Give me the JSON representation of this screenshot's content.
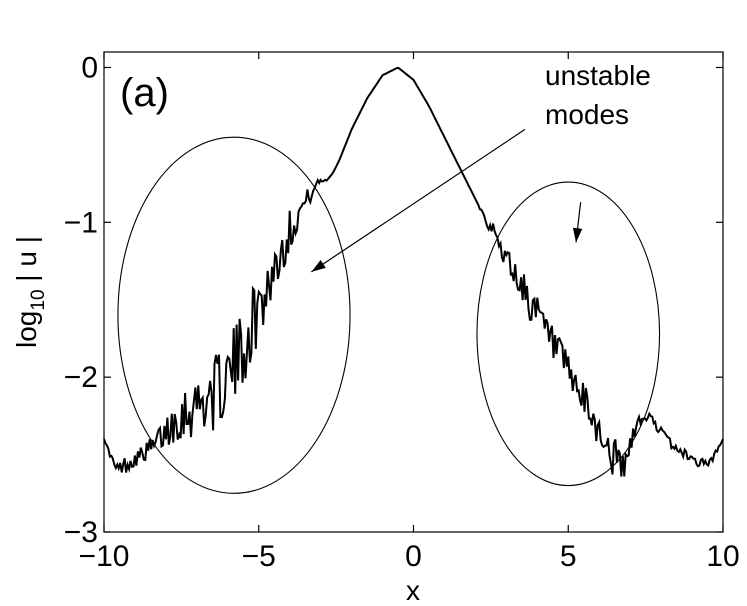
{
  "chart_data": {
    "type": "line",
    "panel_label": "(a)",
    "xlabel": "x",
    "ylabel_main": "log",
    "ylabel_sub": "10",
    "ylabel_rest": " | u |",
    "xlim": [
      -10,
      10
    ],
    "ylim": [
      -3,
      0.1
    ],
    "xticks": [
      -10,
      -5,
      0,
      5,
      10
    ],
    "xtick_labels": [
      "−10",
      "−5",
      "0",
      "5",
      "10"
    ],
    "yticks": [
      0,
      -1,
      -2,
      -3
    ],
    "ytick_labels": [
      "0",
      "−1",
      "−2",
      "−3"
    ],
    "grid": false,
    "annotation": {
      "line1": "unstable",
      "line2": "modes"
    },
    "series": [
      {
        "x": [
          -10.0,
          -9.6,
          -9.2,
          -8.8,
          -8.4,
          -8.0,
          -7.6,
          -7.2,
          -6.8,
          -6.4,
          -6.0,
          -5.6,
          -5.2,
          -4.8,
          -4.4,
          -4.0,
          -3.6,
          -3.2,
          -3.0,
          -2.8,
          -2.6,
          -2.4,
          -2.2,
          -2.0,
          -1.5,
          -1.0,
          -0.5,
          0.0,
          0.5,
          1.0,
          1.5,
          2.0,
          2.4,
          2.8,
          3.2,
          3.6,
          4.0,
          4.4,
          4.8,
          5.2,
          5.6,
          6.0,
          6.4,
          6.8,
          7.2,
          7.6,
          8.0,
          8.4,
          8.8,
          9.2,
          9.6,
          10.0
        ],
        "values": [
          -2.4,
          -2.6,
          -2.55,
          -2.5,
          -2.45,
          -2.35,
          -2.25,
          -2.2,
          -2.15,
          -2.1,
          -2.0,
          -1.85,
          -1.65,
          -1.45,
          -1.25,
          -1.05,
          -0.9,
          -0.78,
          -0.73,
          -0.73,
          -0.68,
          -0.6,
          -0.5,
          -0.4,
          -0.2,
          -0.05,
          0.0,
          -0.08,
          -0.25,
          -0.45,
          -0.65,
          -0.85,
          -1.0,
          -1.15,
          -1.3,
          -1.45,
          -1.6,
          -1.75,
          -1.9,
          -2.05,
          -2.2,
          -2.35,
          -2.5,
          -2.6,
          -2.3,
          -2.25,
          -2.35,
          -2.45,
          -2.5,
          -2.55,
          -2.55,
          -2.4
        ]
      }
    ],
    "noise": [
      0,
      0.04,
      0.06,
      0.05,
      0.08,
      0.12,
      0.16,
      0.2,
      0.22,
      0.24,
      0.25,
      0.25,
      0.24,
      0.22,
      0.18,
      0.14,
      0.08,
      0.04,
      0.02,
      0,
      0,
      0,
      0,
      0,
      0,
      0,
      0,
      0,
      0,
      0,
      0,
      0,
      0.04,
      0.08,
      0.1,
      0.12,
      0.12,
      0.12,
      0.12,
      0.12,
      0.12,
      0.12,
      0.14,
      0.12,
      0.04,
      0.03,
      0.03,
      0.03,
      0.03,
      0.03,
      0.03,
      0
    ],
    "ellipses": [
      {
        "cx": -5.8,
        "cy": -1.6,
        "rx": 3.75,
        "ry": 1.15
      },
      {
        "cx": 5.0,
        "cy": -1.72,
        "rx": 2.95,
        "ry": 0.98
      }
    ],
    "arrows": [
      {
        "x1": 3.6,
        "y1": -0.4,
        "x2": -3.3,
        "y2": -1.32
      },
      {
        "x1": 5.4,
        "y1": -0.87,
        "x2": 5.25,
        "y2": -1.13
      }
    ]
  }
}
